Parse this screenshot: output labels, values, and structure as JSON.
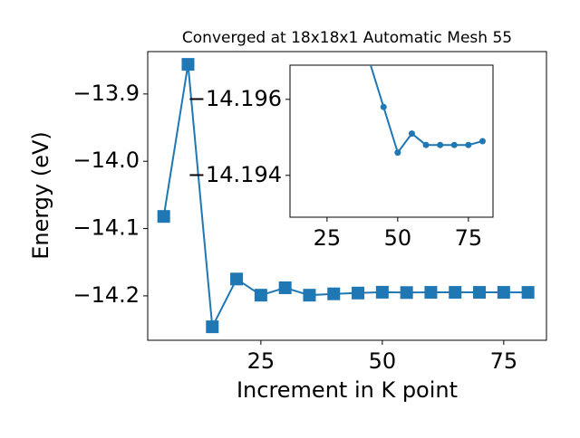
{
  "chart_data": [
    {
      "type": "line",
      "title": "Converged at 18x18x1 Automatic Mesh 55",
      "x_label": "Increment in K point",
      "y_label": "Energy (eV)",
      "x": [
        5,
        10,
        15,
        20,
        25,
        30,
        35,
        40,
        45,
        50,
        55,
        60,
        65,
        70,
        75,
        80
      ],
      "series": [
        {
          "color": "#1f77b4",
          "marker": "square",
          "values": [
            -14.082,
            -13.856,
            -14.246,
            -14.175,
            -14.199,
            -14.188,
            -14.199,
            -14.197,
            -14.1958,
            -14.1946,
            -14.1951,
            -14.1948,
            -14.1948,
            -14.1948,
            -14.1948,
            -14.1949
          ]
        }
      ],
      "xlim": [
        1.7,
        83.8
      ],
      "ylim": [
        -14.266,
        -13.837
      ],
      "xticks": [
        25,
        50,
        75
      ],
      "yticks": [
        {
          "value": -14.2,
          "label": "−14.2"
        },
        {
          "value": -14.1,
          "label": "−14.1"
        },
        {
          "value": -14.0,
          "label": "−14.0"
        },
        {
          "value": -13.9,
          "label": "−13.9"
        }
      ]
    },
    {
      "type": "line",
      "x": [
        40,
        45,
        50,
        55,
        60,
        65,
        70,
        75,
        80
      ],
      "series": [
        {
          "color": "#1f77b4",
          "marker": "circle",
          "values": [
            -14.197,
            -14.1958,
            -14.1946,
            -14.1951,
            -14.1948,
            -14.1948,
            -14.1948,
            -14.1948,
            -14.1949
          ]
        }
      ],
      "xlim": [
        11.9,
        83.7
      ],
      "ylim": [
        -14.1929,
        -14.1969
      ],
      "xticks": [
        25,
        50,
        75
      ],
      "yticks": [
        {
          "value": -14.194,
          "label": "−14.194"
        },
        {
          "value": -14.196,
          "label": "−14.196"
        }
      ]
    }
  ]
}
